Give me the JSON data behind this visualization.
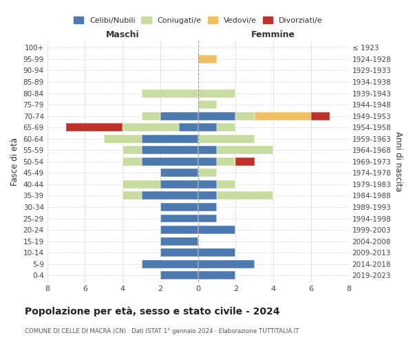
{
  "age_groups": [
    "0-4",
    "5-9",
    "10-14",
    "15-19",
    "20-24",
    "25-29",
    "30-34",
    "35-39",
    "40-44",
    "45-49",
    "50-54",
    "55-59",
    "60-64",
    "65-69",
    "70-74",
    "75-79",
    "80-84",
    "85-89",
    "90-94",
    "95-99",
    "100+"
  ],
  "birth_years": [
    "2019-2023",
    "2014-2018",
    "2009-2013",
    "2004-2008",
    "1999-2003",
    "1994-1998",
    "1989-1993",
    "1984-1988",
    "1979-1983",
    "1974-1978",
    "1969-1973",
    "1964-1968",
    "1959-1963",
    "1954-1958",
    "1949-1953",
    "1944-1948",
    "1939-1943",
    "1934-1938",
    "1929-1933",
    "1924-1928",
    "≤ 1923"
  ],
  "colors": {
    "celibi": "#4c7ab0",
    "coniugati": "#c8dca0",
    "vedovi": "#f0c060",
    "divorziati": "#c0312b"
  },
  "legend_labels": [
    "Celibi/Nubili",
    "Coniugati/e",
    "Vedovi/e",
    "Divorziati/e"
  ],
  "maschi": {
    "celibi": [
      2,
      3,
      2,
      2,
      2,
      2,
      2,
      3,
      2,
      2,
      3,
      3,
      3,
      1,
      2,
      0,
      0,
      0,
      0,
      0,
      0
    ],
    "coniugati": [
      0,
      0,
      0,
      0,
      0,
      0,
      0,
      1,
      2,
      0,
      1,
      1,
      2,
      3,
      1,
      0,
      3,
      0,
      0,
      0,
      0
    ],
    "vedovi": [
      0,
      0,
      0,
      0,
      0,
      0,
      0,
      0,
      0,
      0,
      0,
      0,
      0,
      0,
      0,
      0,
      0,
      0,
      0,
      0,
      0
    ],
    "divorziati": [
      0,
      0,
      0,
      0,
      0,
      0,
      0,
      0,
      0,
      0,
      0,
      0,
      0,
      3,
      0,
      0,
      0,
      0,
      0,
      0,
      0
    ]
  },
  "femmine": {
    "nubili": [
      2,
      3,
      2,
      0,
      2,
      1,
      1,
      1,
      1,
      0,
      1,
      1,
      0,
      1,
      2,
      0,
      0,
      0,
      0,
      0,
      0
    ],
    "coniugate": [
      0,
      0,
      0,
      0,
      0,
      0,
      0,
      3,
      1,
      1,
      1,
      3,
      3,
      1,
      1,
      1,
      2,
      0,
      0,
      0,
      0
    ],
    "vedove": [
      0,
      0,
      0,
      0,
      0,
      0,
      0,
      0,
      0,
      0,
      0,
      0,
      0,
      0,
      3,
      0,
      0,
      0,
      0,
      1,
      0
    ],
    "divorziate": [
      0,
      0,
      0,
      0,
      0,
      0,
      0,
      0,
      0,
      0,
      1,
      0,
      0,
      0,
      1,
      0,
      0,
      0,
      0,
      0,
      0
    ]
  },
  "title": "Popolazione per età, sesso e stato civile - 2024",
  "subtitle": "COMUNE DI CELLE DI MACRA (CN) · Dati ISTAT 1° gennaio 2024 · Elaborazione TUTTITALIA.IT",
  "xlabel_left": "Maschi",
  "xlabel_right": "Femmine",
  "ylabel_left": "Fasce di età",
  "ylabel_right": "Anni di nascita",
  "xlim": 8,
  "background_color": "#ffffff",
  "grid_color": "#cccccc"
}
